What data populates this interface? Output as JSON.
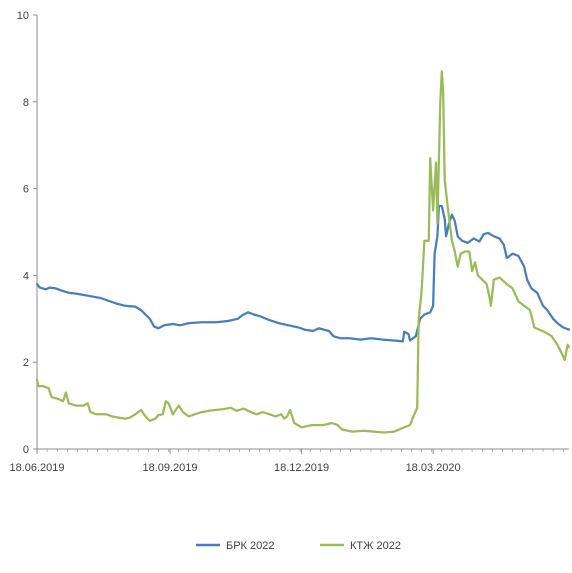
{
  "chart_data": {
    "type": "line",
    "title": "",
    "xlabel": "",
    "ylabel": "",
    "xlim": [
      "2019-06-18",
      "2020-06-20"
    ],
    "ylim": [
      0,
      10
    ],
    "y_ticks": [
      "0",
      "2",
      "4",
      "6",
      "8",
      "10"
    ],
    "x_ticks": [
      {
        "date": "2019-06-18",
        "label": "18.06.2019"
      },
      {
        "date": "2019-09-18",
        "label": "18.09.2019"
      },
      {
        "date": "2019-12-18",
        "label": "18.12.2019"
      },
      {
        "date": "2020-03-18",
        "label": "18.03.2020"
      }
    ],
    "grid": false,
    "legend_position": "bottom",
    "series": [
      {
        "name": "БРК 2022",
        "color": "#4A7EBB",
        "points": [
          [
            "2019-06-18",
            3.8
          ],
          [
            "2019-06-20",
            3.72
          ],
          [
            "2019-06-24",
            3.68
          ],
          [
            "2019-06-27",
            3.72
          ],
          [
            "2019-07-01",
            3.7
          ],
          [
            "2019-07-05",
            3.65
          ],
          [
            "2019-07-10",
            3.6
          ],
          [
            "2019-07-15",
            3.58
          ],
          [
            "2019-07-20",
            3.55
          ],
          [
            "2019-07-25",
            3.52
          ],
          [
            "2019-08-01",
            3.48
          ],
          [
            "2019-08-06",
            3.42
          ],
          [
            "2019-08-12",
            3.35
          ],
          [
            "2019-08-18",
            3.3
          ],
          [
            "2019-08-25",
            3.28
          ],
          [
            "2019-08-29",
            3.2
          ],
          [
            "2019-09-01",
            3.1
          ],
          [
            "2019-09-04",
            3.0
          ],
          [
            "2019-09-07",
            2.82
          ],
          [
            "2019-09-10",
            2.78
          ],
          [
            "2019-09-14",
            2.85
          ],
          [
            "2019-09-20",
            2.88
          ],
          [
            "2019-09-25",
            2.85
          ],
          [
            "2019-10-01",
            2.9
          ],
          [
            "2019-10-10",
            2.92
          ],
          [
            "2019-10-20",
            2.92
          ],
          [
            "2019-10-28",
            2.95
          ],
          [
            "2019-11-04",
            3.0
          ],
          [
            "2019-11-07",
            3.08
          ],
          [
            "2019-11-11",
            3.15
          ],
          [
            "2019-11-15",
            3.1
          ],
          [
            "2019-11-20",
            3.05
          ],
          [
            "2019-11-25",
            2.98
          ],
          [
            "2019-12-02",
            2.9
          ],
          [
            "2019-12-09",
            2.85
          ],
          [
            "2019-12-16",
            2.8
          ],
          [
            "2019-12-20",
            2.75
          ],
          [
            "2019-12-26",
            2.72
          ],
          [
            "2019-12-30",
            2.78
          ],
          [
            "2020-01-06",
            2.72
          ],
          [
            "2020-01-09",
            2.6
          ],
          [
            "2020-01-14",
            2.55
          ],
          [
            "2020-01-20",
            2.55
          ],
          [
            "2020-01-28",
            2.52
          ],
          [
            "2020-02-04",
            2.55
          ],
          [
            "2020-02-12",
            2.52
          ],
          [
            "2020-02-20",
            2.5
          ],
          [
            "2020-02-26",
            2.48
          ],
          [
            "2020-02-27",
            2.7
          ],
          [
            "2020-03-01",
            2.65
          ],
          [
            "2020-03-02",
            2.5
          ],
          [
            "2020-03-04",
            2.55
          ],
          [
            "2020-03-06",
            2.6
          ],
          [
            "2020-03-09",
            3.0
          ],
          [
            "2020-03-12",
            3.1
          ],
          [
            "2020-03-16",
            3.15
          ],
          [
            "2020-03-18",
            3.3
          ],
          [
            "2020-03-19",
            4.5
          ],
          [
            "2020-03-21",
            4.9
          ],
          [
            "2020-03-22",
            5.6
          ],
          [
            "2020-03-24",
            5.6
          ],
          [
            "2020-03-26",
            5.3
          ],
          [
            "2020-03-27",
            4.9
          ],
          [
            "2020-03-29",
            5.2
          ],
          [
            "2020-03-31",
            5.4
          ],
          [
            "2020-04-02",
            5.25
          ],
          [
            "2020-04-04",
            4.9
          ],
          [
            "2020-04-07",
            4.8
          ],
          [
            "2020-04-11",
            4.75
          ],
          [
            "2020-04-15",
            4.85
          ],
          [
            "2020-04-19",
            4.78
          ],
          [
            "2020-04-22",
            4.95
          ],
          [
            "2020-04-25",
            4.98
          ],
          [
            "2020-04-29",
            4.9
          ],
          [
            "2020-05-03",
            4.85
          ],
          [
            "2020-05-06",
            4.7
          ],
          [
            "2020-05-08",
            4.4
          ],
          [
            "2020-05-12",
            4.5
          ],
          [
            "2020-05-16",
            4.45
          ],
          [
            "2020-05-20",
            4.2
          ],
          [
            "2020-05-22",
            3.9
          ],
          [
            "2020-05-25",
            3.7
          ],
          [
            "2020-05-29",
            3.6
          ],
          [
            "2020-06-02",
            3.3
          ],
          [
            "2020-06-05",
            3.2
          ],
          [
            "2020-06-09",
            3.0
          ],
          [
            "2020-06-12",
            2.9
          ],
          [
            "2020-06-16",
            2.8
          ],
          [
            "2020-06-20",
            2.75
          ]
        ]
      },
      {
        "name": "КТЖ 2022",
        "color": "#9BBB59",
        "points": [
          [
            "2019-06-18",
            1.6
          ],
          [
            "2019-06-19",
            1.45
          ],
          [
            "2019-06-22",
            1.45
          ],
          [
            "2019-06-26",
            1.4
          ],
          [
            "2019-06-28",
            1.2
          ],
          [
            "2019-07-03",
            1.15
          ],
          [
            "2019-07-06",
            1.1
          ],
          [
            "2019-07-08",
            1.3
          ],
          [
            "2019-07-10",
            1.05
          ],
          [
            "2019-07-15",
            1.0
          ],
          [
            "2019-07-20",
            1.0
          ],
          [
            "2019-07-23",
            1.05
          ],
          [
            "2019-07-25",
            0.85
          ],
          [
            "2019-07-29",
            0.8
          ],
          [
            "2019-08-05",
            0.8
          ],
          [
            "2019-08-09",
            0.75
          ],
          [
            "2019-08-14",
            0.72
          ],
          [
            "2019-08-18",
            0.7
          ],
          [
            "2019-08-21",
            0.72
          ],
          [
            "2019-08-25",
            0.8
          ],
          [
            "2019-08-29",
            0.9
          ],
          [
            "2019-09-01",
            0.75
          ],
          [
            "2019-09-04",
            0.65
          ],
          [
            "2019-09-08",
            0.7
          ],
          [
            "2019-09-10",
            0.78
          ],
          [
            "2019-09-13",
            0.8
          ],
          [
            "2019-09-15",
            1.1
          ],
          [
            "2019-09-17",
            1.05
          ],
          [
            "2019-09-20",
            0.8
          ],
          [
            "2019-09-24",
            1.0
          ],
          [
            "2019-09-27",
            0.85
          ],
          [
            "2019-10-01",
            0.75
          ],
          [
            "2019-10-05",
            0.8
          ],
          [
            "2019-10-10",
            0.85
          ],
          [
            "2019-10-15",
            0.88
          ],
          [
            "2019-10-20",
            0.9
          ],
          [
            "2019-10-25",
            0.92
          ],
          [
            "2019-10-30",
            0.95
          ],
          [
            "2019-11-03",
            0.88
          ],
          [
            "2019-11-08",
            0.93
          ],
          [
            "2019-11-13",
            0.85
          ],
          [
            "2019-11-17",
            0.8
          ],
          [
            "2019-11-21",
            0.85
          ],
          [
            "2019-11-26",
            0.8
          ],
          [
            "2019-11-30",
            0.75
          ],
          [
            "2019-12-04",
            0.8
          ],
          [
            "2019-12-06",
            0.7
          ],
          [
            "2019-12-08",
            0.75
          ],
          [
            "2019-12-10",
            0.9
          ],
          [
            "2019-12-13",
            0.6
          ],
          [
            "2019-12-18",
            0.5
          ],
          [
            "2019-12-25",
            0.55
          ],
          [
            "2020-01-02",
            0.55
          ],
          [
            "2020-01-08",
            0.6
          ],
          [
            "2020-01-12",
            0.55
          ],
          [
            "2020-01-15",
            0.45
          ],
          [
            "2020-01-22",
            0.4
          ],
          [
            "2020-01-30",
            0.42
          ],
          [
            "2020-02-06",
            0.4
          ],
          [
            "2020-02-13",
            0.38
          ],
          [
            "2020-02-20",
            0.4
          ],
          [
            "2020-02-27",
            0.5
          ],
          [
            "2020-03-02",
            0.55
          ],
          [
            "2020-03-05",
            0.8
          ],
          [
            "2020-03-07",
            0.95
          ],
          [
            "2020-03-08",
            3.0
          ],
          [
            "2020-03-10",
            3.6
          ],
          [
            "2020-03-12",
            4.8
          ],
          [
            "2020-03-15",
            4.8
          ],
          [
            "2020-03-16",
            6.7
          ],
          [
            "2020-03-18",
            5.5
          ],
          [
            "2020-03-20",
            6.6
          ],
          [
            "2020-03-21",
            5.2
          ],
          [
            "2020-03-23",
            8.0
          ],
          [
            "2020-03-24",
            8.7
          ],
          [
            "2020-03-25",
            8.2
          ],
          [
            "2020-03-26",
            6.2
          ],
          [
            "2020-03-28",
            5.6
          ],
          [
            "2020-03-31",
            4.8
          ],
          [
            "2020-04-02",
            4.55
          ],
          [
            "2020-04-04",
            4.2
          ],
          [
            "2020-04-06",
            4.5
          ],
          [
            "2020-04-09",
            4.55
          ],
          [
            "2020-04-12",
            4.55
          ],
          [
            "2020-04-14",
            4.1
          ],
          [
            "2020-04-16",
            4.3
          ],
          [
            "2020-04-18",
            4.0
          ],
          [
            "2020-04-21",
            3.9
          ],
          [
            "2020-04-24",
            3.8
          ],
          [
            "2020-04-26",
            3.5
          ],
          [
            "2020-04-27",
            3.3
          ],
          [
            "2020-04-29",
            3.9
          ],
          [
            "2020-05-03",
            3.95
          ],
          [
            "2020-05-08",
            3.8
          ],
          [
            "2020-05-12",
            3.7
          ],
          [
            "2020-05-16",
            3.4
          ],
          [
            "2020-05-20",
            3.3
          ],
          [
            "2020-05-24",
            3.2
          ],
          [
            "2020-05-27",
            2.8
          ],
          [
            "2020-06-03",
            2.7
          ],
          [
            "2020-06-08",
            2.6
          ],
          [
            "2020-06-12",
            2.4
          ],
          [
            "2020-06-15",
            2.2
          ],
          [
            "2020-06-17",
            2.05
          ],
          [
            "2020-06-19",
            2.4
          ],
          [
            "2020-06-20",
            2.35
          ]
        ]
      }
    ]
  }
}
